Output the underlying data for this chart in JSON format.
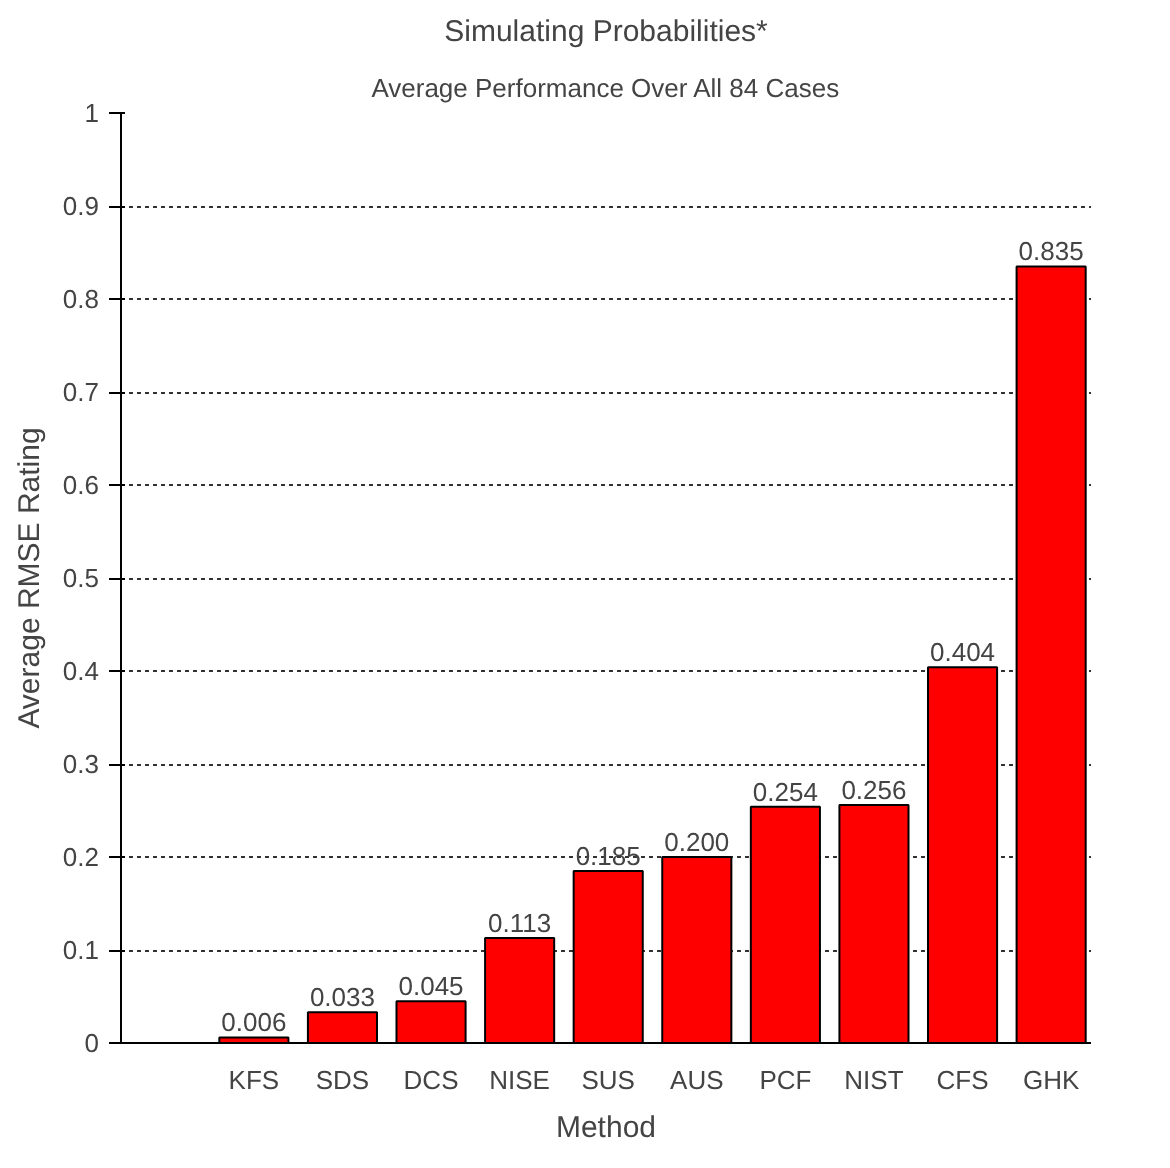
{
  "chart_data": {
    "type": "bar",
    "title": "Simulating Probabilities*",
    "subtitle": "Average Performance Over All 84 Cases",
    "xlabel": "Method",
    "ylabel": "Average RMSE Rating",
    "categories": [
      "KFS",
      "SDS",
      "DCS",
      "NISE",
      "SUS",
      "AUS",
      "PCF",
      "NIST",
      "CFS",
      "GHK"
    ],
    "values": [
      0.006,
      0.033,
      0.045,
      0.113,
      0.185,
      0.2,
      0.254,
      0.256,
      0.404,
      0.835
    ],
    "value_labels": [
      "0.006",
      "0.033",
      "0.045",
      "0.113",
      "0.185",
      "0.200",
      "0.254",
      "0.256",
      "0.404",
      "0.835"
    ],
    "color": "#ff0000",
    "ylim": [
      0,
      1
    ],
    "yticks": [
      0,
      0.1,
      0.2,
      0.3,
      0.4,
      0.5,
      0.6,
      0.7,
      0.8,
      0.9,
      1
    ],
    "grid": "y",
    "line_style": "dotted"
  }
}
